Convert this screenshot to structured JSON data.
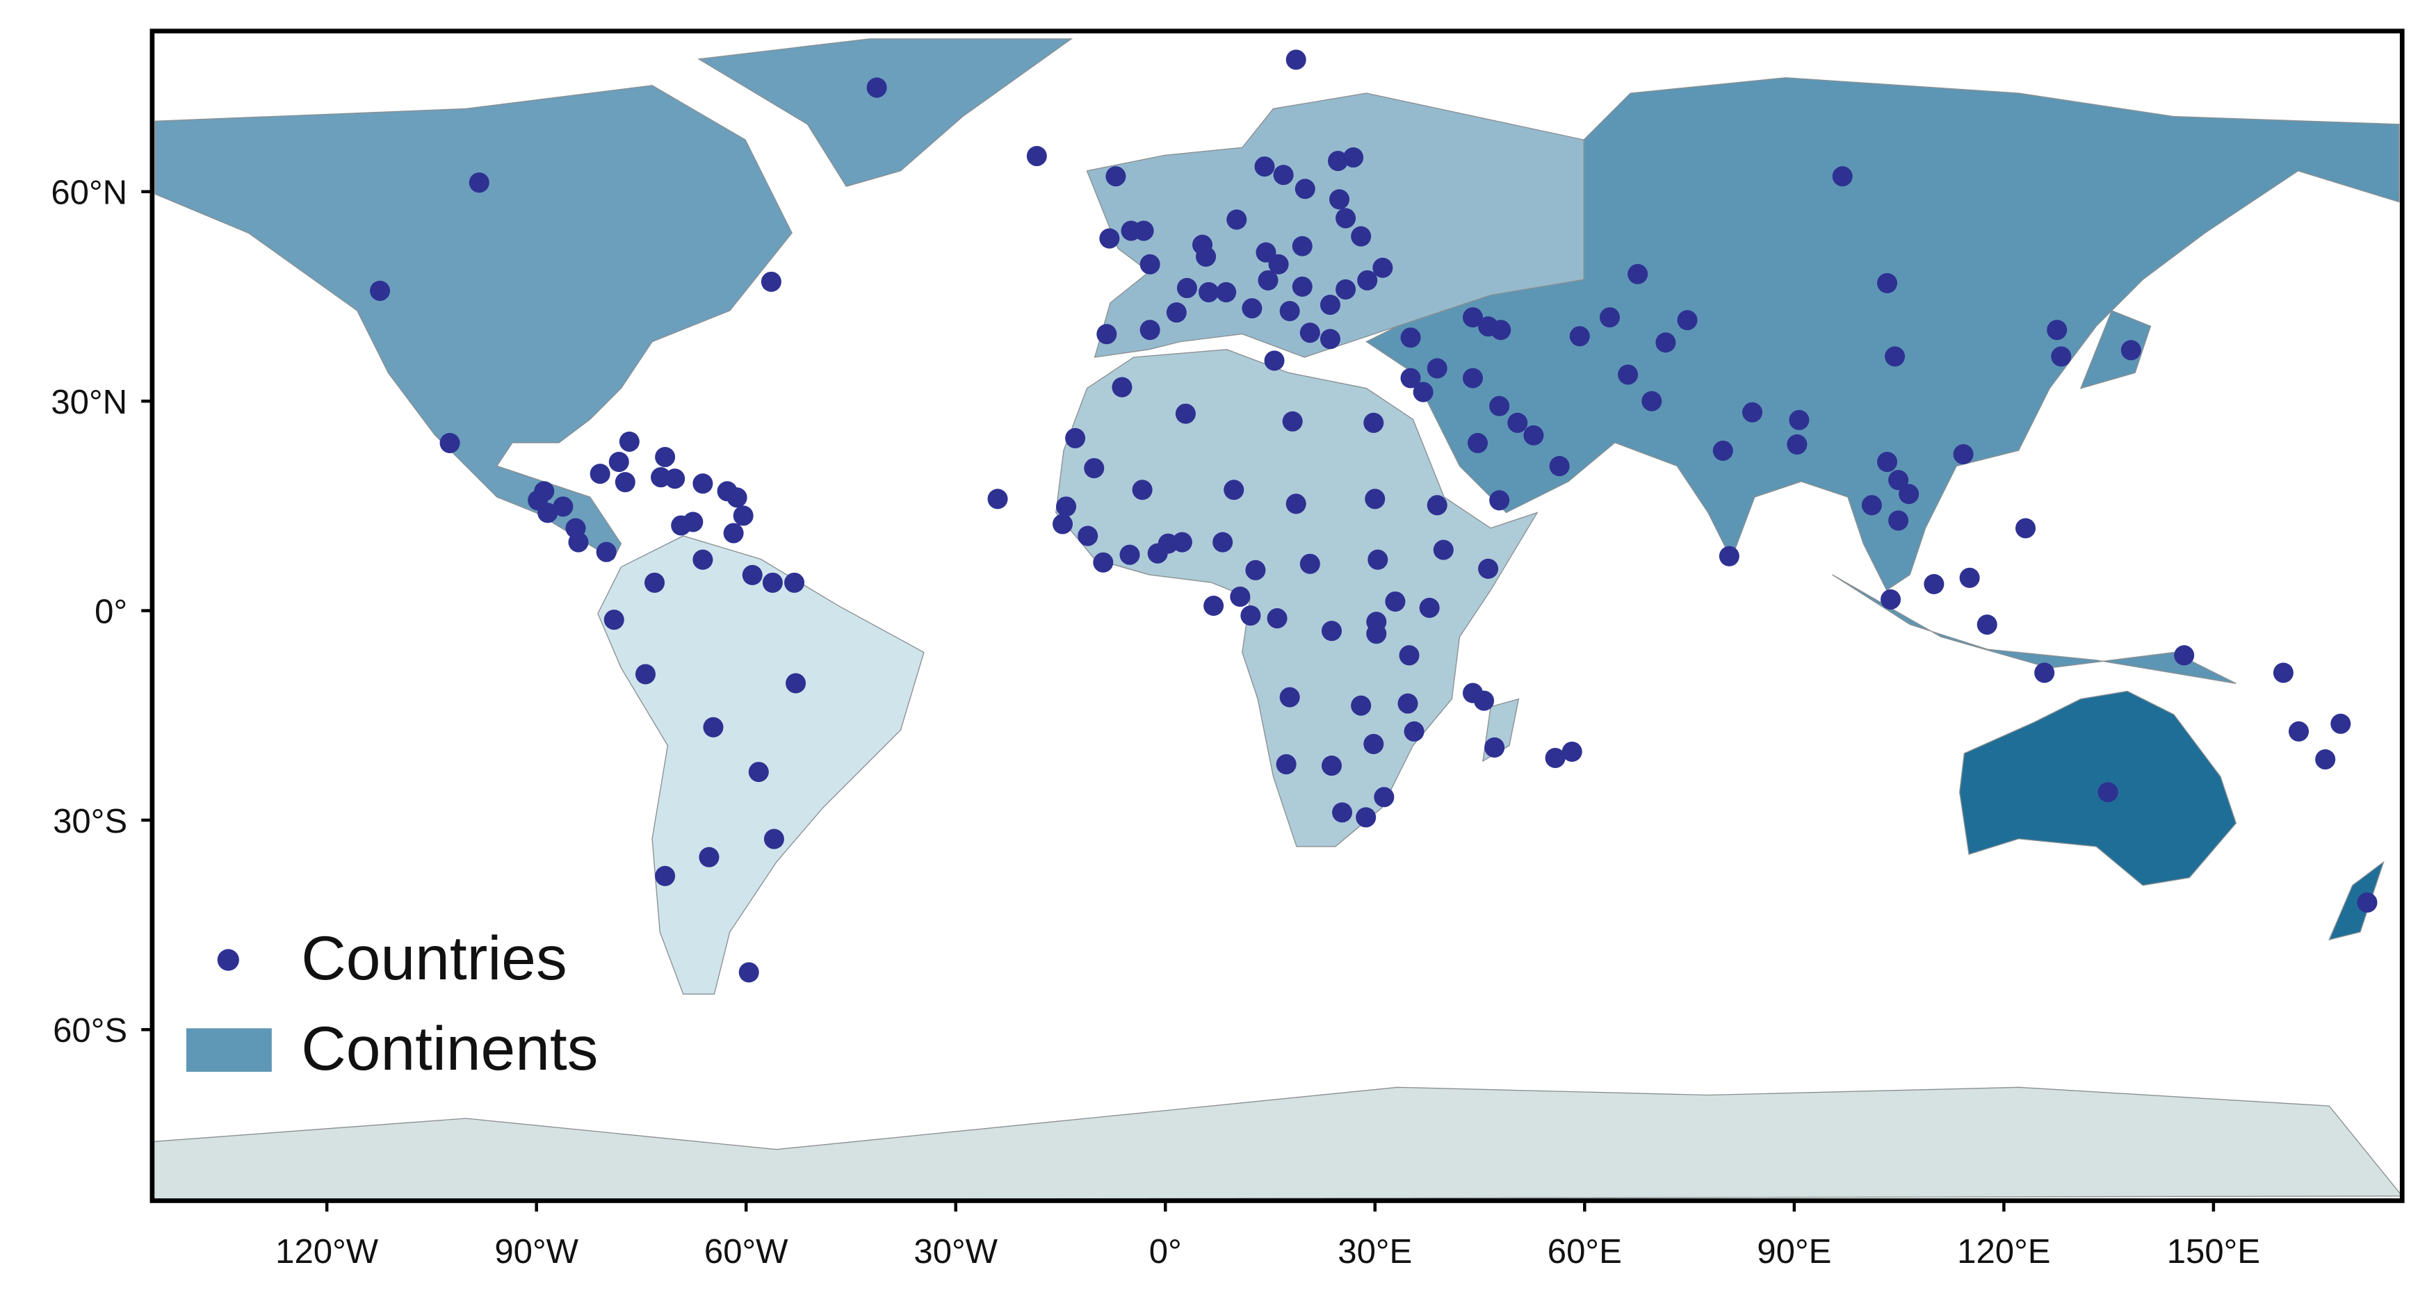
{
  "chart_data": {
    "type": "scatter",
    "xlim": [
      -145,
      177
    ],
    "ylim": [
      -84.5,
      83
    ],
    "xticks": [
      {
        "value": -120,
        "label": "120°W"
      },
      {
        "value": -90,
        "label": "90°W"
      },
      {
        "value": -60,
        "label": "60°W"
      },
      {
        "value": -30,
        "label": "30°W"
      },
      {
        "value": 0,
        "label": "0°"
      },
      {
        "value": 30,
        "label": "30°E"
      },
      {
        "value": 60,
        "label": "60°E"
      },
      {
        "value": 90,
        "label": "90°E"
      },
      {
        "value": 120,
        "label": "120°E"
      },
      {
        "value": 150,
        "label": "150°E"
      }
    ],
    "yticks": [
      {
        "value": -60,
        "label": "60°S"
      },
      {
        "value": -30,
        "label": "30°S"
      },
      {
        "value": 0,
        "label": "0°"
      },
      {
        "value": 30,
        "label": "30°N"
      },
      {
        "value": 60,
        "label": "60°N"
      }
    ],
    "series": [
      {
        "name": "Countries",
        "color": "#2e3192",
        "x": [
          -98.2,
          -112.4,
          -56.4,
          -102.4,
          -41.3,
          -18.4,
          18.7,
          -88.9,
          -89.8,
          -88.4,
          -86.2,
          -84.4,
          -84,
          -80,
          -80.9,
          -78.2,
          -76.7,
          -77.3,
          -71.6,
          -72.2,
          -70.2,
          -66.2,
          -62.7,
          -61.3,
          -60.4,
          -61.8,
          -67.6,
          -69.3,
          -73.1,
          -66.2,
          -59.1,
          -56.2,
          -53.1,
          -78.9,
          -74.4,
          -52.9,
          -64.7,
          -58.2,
          -56,
          -65.3,
          -71.6,
          -59.6,
          -7.1,
          -8,
          -4.9,
          -3.1,
          -2.2,
          5.3,
          5.8,
          3.1,
          8.7,
          10.2,
          14.2,
          16.9,
          24.7,
          26.9,
          20,
          24.9,
          25.8,
          28,
          19.6,
          14.4,
          16.2,
          14.7,
          19.6,
          23.6,
          25.8,
          28.9,
          31.1,
          12.4,
          17.8,
          20.7,
          23.6,
          6.2,
          -2.2,
          -8.4,
          15.6,
          1.6,
          35.1,
          35.1,
          36.9,
          38.9,
          44,
          46.2,
          48,
          44,
          47.8,
          50.4,
          52.7,
          44.7,
          56.4,
          47.8,
          59.3,
          63.6,
          67.6,
          71.6,
          74.7,
          66.2,
          69.6,
          79.8,
          84,
          90.7,
          90.4,
          96.9,
          103.3,
          104.4,
          103.3,
          101.1,
          104.9,
          106.4,
          104.9,
          103.8,
          110,
          115.1,
          117.6,
          114.2,
          123.1,
          125.8,
          127.6,
          128.2,
          138.2,
          80.7,
          -6.2,
          2.9,
          18.2,
          29.8,
          -12.9,
          -10.2,
          -3.3,
          9.8,
          18.7,
          30,
          38.9,
          -14.2,
          -14.7,
          -11.1,
          -8.9,
          -5.1,
          -1.1,
          0.4,
          2.4,
          8.2,
          12.9,
          20.7,
          30.4,
          39.8,
          46.2,
          37.8,
          32.9,
          6.9,
          10.7,
          12.2,
          16,
          23.8,
          30.2,
          30.2,
          34.9,
          17.8,
          28,
          34.7,
          35.6,
          29.8,
          17.3,
          23.8,
          31.3,
          25.3,
          28.7,
          44,
          45.6,
          47.1,
          55.8,
          58.2,
          -24,
          134.9,
          145.8,
          160,
          162.2,
          168.2,
          166,
          172
        ],
        "y": [
          61.3,
          45.8,
          47.1,
          24,
          74.9,
          65.1,
          78.9,
          17.1,
          15.8,
          14,
          14.9,
          11.8,
          9.8,
          8.4,
          19.6,
          21.3,
          24.2,
          18.4,
          22,
          19.1,
          18.9,
          18.2,
          17.1,
          16.2,
          13.6,
          11.1,
          12.7,
          12.2,
          4,
          7.3,
          5.1,
          4,
          4,
          -1.3,
          -9.1,
          -10.4,
          -16.7,
          -23.1,
          -32.7,
          -35.3,
          -38,
          -51.8,
          62.2,
          53.3,
          54.4,
          54.4,
          49.6,
          52.4,
          50.7,
          46.2,
          45.6,
          56,
          63.6,
          62.4,
          64.4,
          64.9,
          60.4,
          58.9,
          56.2,
          53.6,
          52.2,
          51.3,
          49.6,
          47.3,
          46.4,
          43.8,
          46,
          47.3,
          49.1,
          43.3,
          42.9,
          39.8,
          38.9,
          45.6,
          40.2,
          39.6,
          35.8,
          42.7,
          39.1,
          33.3,
          31.3,
          34.7,
          42,
          40.7,
          40.2,
          33.3,
          29.3,
          26.9,
          25.1,
          24,
          20.7,
          15.8,
          39.3,
          42,
          48.2,
          38.4,
          41.6,
          33.8,
          30,
          22.9,
          28.4,
          27.3,
          23.8,
          62.2,
          46.9,
          36.4,
          21.3,
          15.1,
          18.7,
          16.7,
          12.9,
          1.6,
          3.8,
          4.7,
          -2,
          22.4,
          11.8,
          -8.9,
          40.2,
          36.4,
          37.3,
          7.8,
          32,
          28.2,
          27.1,
          26.9,
          24.7,
          20.4,
          17.3,
          17.3,
          15.3,
          16,
          15.1,
          14.9,
          12.4,
          10.7,
          6.9,
          8,
          8.2,
          9.6,
          9.8,
          9.8,
          5.8,
          6.7,
          7.3,
          8.7,
          6,
          0.4,
          1.3,
          0.7,
          2,
          -0.7,
          -1.1,
          -2.9,
          -1.6,
          -3.3,
          -6.4,
          -12.4,
          -13.6,
          -13.3,
          -17.3,
          -19.1,
          -22,
          -22.2,
          -26.7,
          -28.9,
          -29.6,
          -11.8,
          -12.9,
          -19.6,
          -21.1,
          -20.2,
          16,
          -26,
          -6.4,
          -8.9,
          -17.3,
          -16.2,
          -21.3,
          -41.8
        ]
      }
    ],
    "areas": [
      {
        "name": "Continents",
        "color": "#5f97b6"
      }
    ]
  }
}
